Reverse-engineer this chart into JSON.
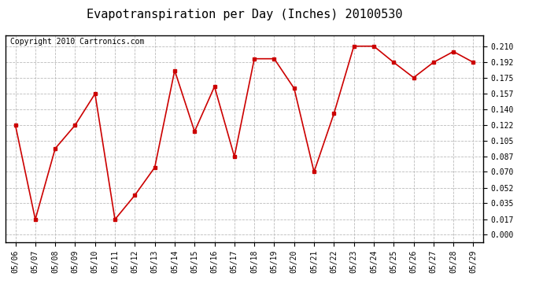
{
  "title": "Evapotranspiration per Day (Inches) 20100530",
  "copyright_text": "Copyright 2010 Cartronics.com",
  "dates": [
    "05/06",
    "05/07",
    "05/08",
    "05/09",
    "05/10",
    "05/11",
    "05/12",
    "05/13",
    "05/14",
    "05/15",
    "05/16",
    "05/17",
    "05/18",
    "05/19",
    "05/20",
    "05/21",
    "05/22",
    "05/23",
    "05/24",
    "05/25",
    "05/26",
    "05/27",
    "05/28",
    "05/29"
  ],
  "values": [
    0.122,
    0.017,
    0.096,
    0.122,
    0.157,
    0.017,
    0.044,
    0.075,
    0.183,
    0.115,
    0.165,
    0.087,
    0.196,
    0.196,
    0.163,
    0.07,
    0.135,
    0.21,
    0.21,
    0.192,
    0.175,
    0.192,
    0.204,
    0.192
  ],
  "line_color": "#cc0000",
  "marker": "s",
  "marker_size": 3,
  "background_color": "#ffffff",
  "plot_bg_color": "#ffffff",
  "grid_color": "#bbbbbb",
  "yticks": [
    0.0,
    0.017,
    0.035,
    0.052,
    0.07,
    0.087,
    0.105,
    0.122,
    0.14,
    0.157,
    0.175,
    0.192,
    0.21
  ],
  "ylim": [
    -0.008,
    0.222
  ],
  "title_fontsize": 11,
  "copyright_fontsize": 7,
  "tick_fontsize": 7
}
